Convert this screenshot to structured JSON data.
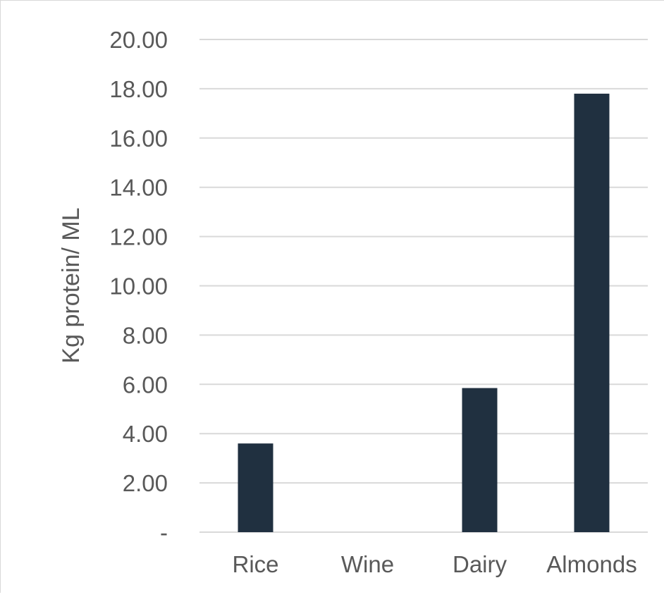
{
  "chart_data": {
    "type": "bar",
    "title": "",
    "xlabel": "",
    "ylabel": "Kg protein/ ML",
    "categories": [
      "Rice",
      "Wine",
      "Dairy",
      "Almonds"
    ],
    "values": [
      3.6,
      0,
      5.85,
      17.8
    ],
    "ylim": [
      0,
      20
    ],
    "yticks": [
      {
        "value": 0,
        "label": "-"
      },
      {
        "value": 2,
        "label": "2.00"
      },
      {
        "value": 4,
        "label": "4.00"
      },
      {
        "value": 6,
        "label": "6.00"
      },
      {
        "value": 8,
        "label": "8.00"
      },
      {
        "value": 10,
        "label": "10.00"
      },
      {
        "value": 12,
        "label": "12.00"
      },
      {
        "value": 14,
        "label": "14.00"
      },
      {
        "value": 16,
        "label": "16.00"
      },
      {
        "value": 18,
        "label": "18.00"
      },
      {
        "value": 20,
        "label": "20.00"
      }
    ],
    "grid": true,
    "legend": "none",
    "colors": {
      "bar": "#203040",
      "grid": "#d9d9d9",
      "text": "#595959"
    }
  }
}
